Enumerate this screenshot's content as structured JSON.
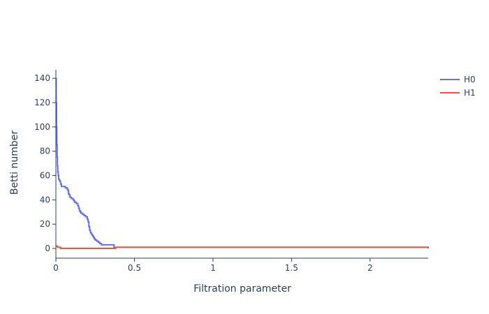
{
  "chart_data": {
    "type": "line",
    "xlabel": "Filtration parameter",
    "ylabel": "Betti number",
    "xlim": [
      0,
      2.37
    ],
    "ylim": [
      -8,
      147
    ],
    "x_ticks": [
      0,
      0.5,
      1,
      1.5,
      2
    ],
    "x_tick_labels": [
      "0",
      "0.5",
      "1",
      "1.5",
      "2"
    ],
    "y_ticks": [
      0,
      20,
      40,
      60,
      80,
      100,
      120,
      140
    ],
    "y_tick_labels": [
      "0",
      "20",
      "40",
      "60",
      "80",
      "100",
      "120",
      "140"
    ],
    "grid": false,
    "legend_position": "top-right",
    "series": [
      {
        "name": "H0",
        "color": "#636efa",
        "step": true,
        "x": [
          0,
          0.002,
          0.004,
          0.006,
          0.008,
          0.01,
          0.012,
          0.015,
          0.018,
          0.022,
          0.026,
          0.03,
          0.035,
          0.06,
          0.07,
          0.075,
          0.08,
          0.085,
          0.09,
          0.1,
          0.11,
          0.115,
          0.12,
          0.13,
          0.14,
          0.145,
          0.15,
          0.155,
          0.16,
          0.17,
          0.18,
          0.19,
          0.2,
          0.205,
          0.21,
          0.215,
          0.22,
          0.225,
          0.23,
          0.235,
          0.24,
          0.245,
          0.25,
          0.26,
          0.27,
          0.28,
          0.29,
          0.3,
          0.35,
          0.37,
          2.37
        ],
        "values": [
          140,
          120,
          100,
          85,
          75,
          68,
          63,
          60,
          57,
          56,
          55,
          53,
          51,
          50,
          49,
          48,
          45,
          44,
          42,
          41,
          40,
          39,
          38,
          37,
          35,
          33,
          31,
          30,
          29,
          28,
          27,
          26,
          24,
          22,
          18,
          15,
          13,
          12,
          11,
          10,
          9,
          8,
          7,
          6,
          5,
          4,
          3,
          3,
          3,
          1,
          1
        ]
      },
      {
        "name": "H1",
        "color": "#ef553b",
        "step": true,
        "x": [
          0,
          0.01,
          0.02,
          0.03,
          0.37,
          0.38,
          2.35,
          2.37
        ],
        "values": [
          2,
          1,
          1,
          0,
          0,
          1,
          1,
          0
        ]
      }
    ]
  }
}
